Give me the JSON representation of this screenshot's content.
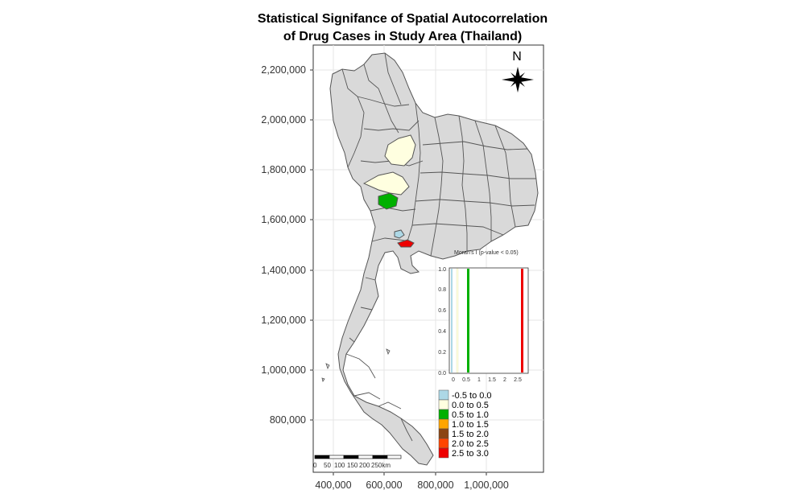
{
  "map": {
    "title_line1": "Statistical Signifance of Spatial Autocorrelation",
    "title_line2": "of Drug Cases in Study Area (Thailand)",
    "north_label": "N",
    "y_ticks": [
      "2,200,000",
      "2,000,000",
      "1,800,000",
      "1,600,000",
      "1,400,000",
      "1,200,000",
      "1,000,000",
      "800,000"
    ],
    "x_ticks": [
      "400,000",
      "600,000",
      "800,000",
      "1,000,000"
    ],
    "scalebar_labels": [
      "0",
      "50",
      "100",
      "150",
      "200",
      "250km"
    ],
    "colors": {
      "base": "#d9d9d9",
      "border": "#555555",
      "light_blue": "#add8e6",
      "cream": "#ffffe0",
      "green": "#00b000",
      "orange": "#ffa500",
      "brown": "#8b4513",
      "red_orange": "#ff4500",
      "red": "#ee0000"
    }
  },
  "inset": {
    "title": "Moran's I (p-value < 0.05)",
    "y_ticks": [
      "0.0",
      "0.2",
      "0.4",
      "0.6",
      "0.8",
      "1.0"
    ],
    "x_ticks": [
      "0",
      "0.5",
      "1",
      "1.5",
      "2",
      "2.5"
    ]
  },
  "legend": {
    "items": [
      {
        "label": "-0.5 to 0.0",
        "color": "#add8e6"
      },
      {
        "label": "0.0 to 0.5",
        "color": "#ffffe0"
      },
      {
        "label": "0.5 to 1.0",
        "color": "#00b000"
      },
      {
        "label": "1.0 to 1.5",
        "color": "#ffa500"
      },
      {
        "label": "1.5 to 2.0",
        "color": "#8b4513"
      },
      {
        "label": "2.0 to 2.5",
        "color": "#ff4500"
      },
      {
        "label": "2.5 to 3.0",
        "color": "#ee0000"
      }
    ]
  }
}
